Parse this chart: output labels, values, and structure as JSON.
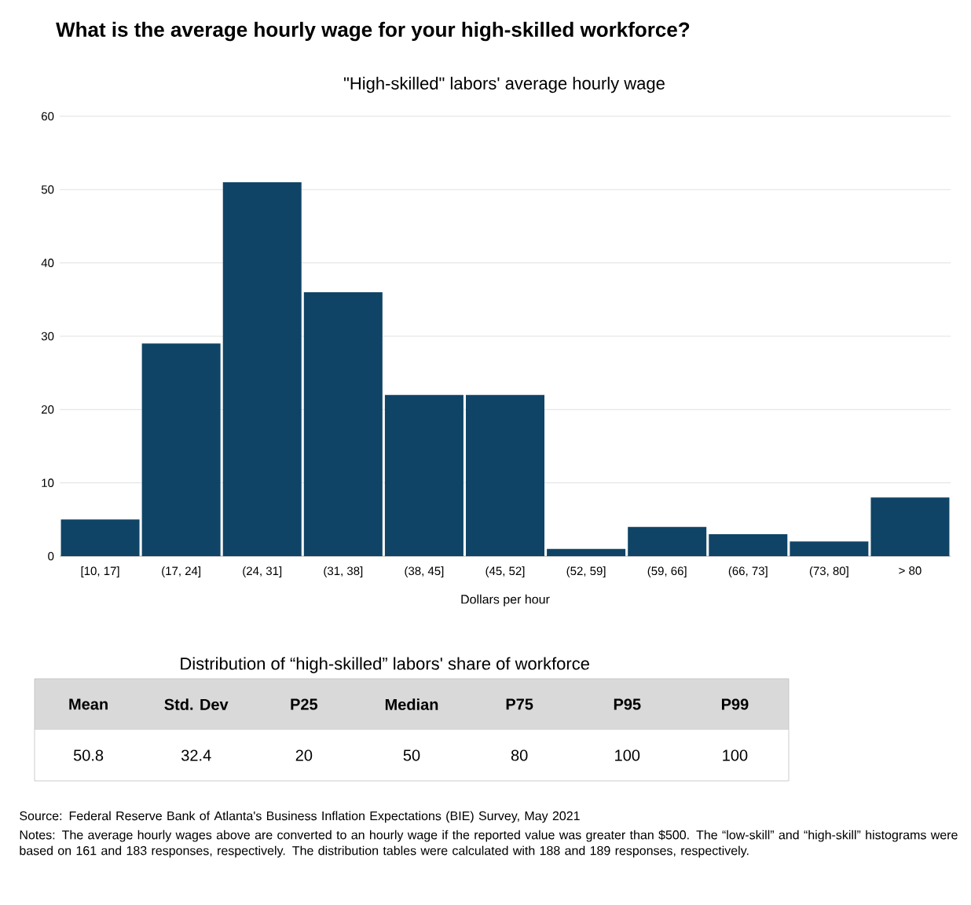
{
  "chart_data": [
    {
      "type": "bar",
      "title": "What is the average hourly wage for your high-skilled workforce?",
      "subtitle": "\"High-skilled\" labors' average hourly wage",
      "xlabel": "Dollars per hour",
      "categories": [
        "[10, 17]",
        "(17, 24]",
        "(24, 31]",
        "(31, 38]",
        "(38, 45]",
        "(45, 52]",
        "(52, 59]",
        "(59, 66]",
        "(66, 73]",
        "(73, 80]",
        "> 80"
      ],
      "values": [
        5,
        29,
        51,
        36,
        22,
        22,
        1,
        4,
        3,
        2,
        8
      ],
      "color": "#0f4466",
      "ylim": [
        0,
        60
      ],
      "yticks": [
        0,
        10,
        20,
        30,
        40,
        50,
        60
      ],
      "grid": "y",
      "annotations": [
        "Source: Federal Reserve Bank of Atlanta's Business Inflation Expectations (BIE) Survey, May 2021",
        "Notes: The average hourly wages above are converted to an hourly wage if the reported value was greater than $500. The “low-skill” and “high-skill” histograms were based on 161 and 183 responses, respectively. The distribution tables were calculated with 188 and 189 responses, respectively."
      ]
    },
    {
      "type": "other",
      "title": "Distribution of “high-skilled” labors' share of workforce",
      "categories": [
        "Mean",
        "Std. Dev",
        "P25",
        "Median",
        "P75",
        "P95",
        "P99"
      ],
      "values": [
        50.8,
        32.4,
        20,
        50,
        80,
        100,
        100
      ],
      "value_labels": [
        "50.8",
        "32.4",
        "20",
        "50",
        "80",
        "100",
        "100"
      ]
    }
  ]
}
